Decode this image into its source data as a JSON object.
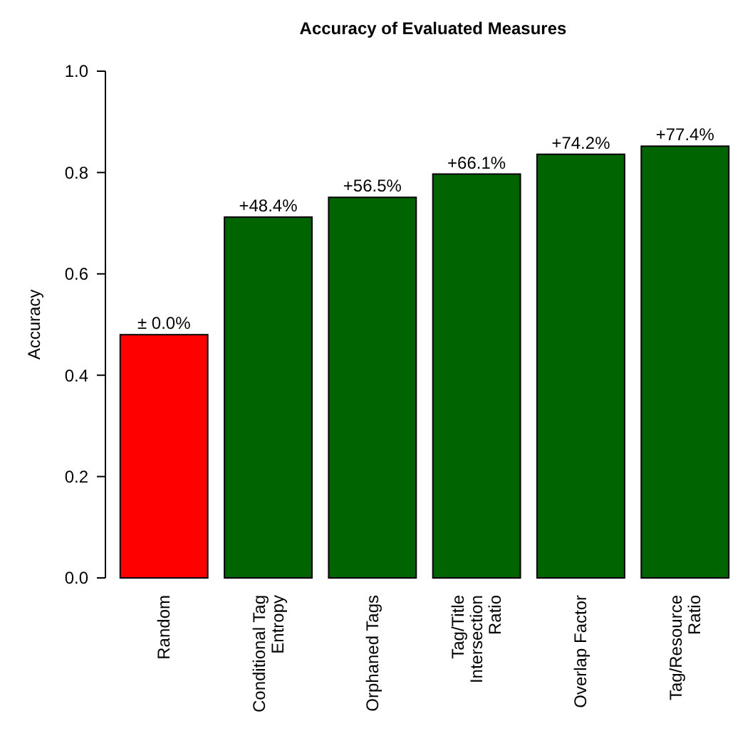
{
  "chart_data": {
    "type": "bar",
    "title": "Accuracy of Evaluated Measures",
    "ylabel": "Accuracy",
    "categories": [
      "Random",
      "Conditional Tag\nEntropy",
      "Orphaned Tags",
      "Tag/Title\nIntersection\nRatio",
      "Overlap Factor",
      "Tag/Resource\nRatio"
    ],
    "values": [
      0.48,
      0.712,
      0.751,
      0.797,
      0.836,
      0.852
    ],
    "colors": [
      "#ff0000",
      "#006400",
      "#006400",
      "#006400",
      "#006400",
      "#006400"
    ],
    "annotations": [
      {
        "text": "± 0.0%",
        "x": "Random",
        "y": 0.48
      },
      {
        "text": "+48.4%",
        "x": "Conditional Tag\nEntropy",
        "y": 0.712
      },
      {
        "text": "+56.5%",
        "x": "Orphaned Tags",
        "y": 0.751
      },
      {
        "text": "+66.1%",
        "x": "Tag/Title\nIntersection\nRatio",
        "y": 0.797
      },
      {
        "text": "+74.2%",
        "x": "Overlap Factor",
        "y": 0.836
      },
      {
        "text": "+77.4%",
        "x": "Tag/Resource\nRatio",
        "y": 0.852
      }
    ],
    "ylim": [
      0,
      1
    ],
    "yticks": [
      {
        "value": 0,
        "label": "0.0"
      },
      {
        "value": 0.2,
        "label": "0.2"
      },
      {
        "value": 0.4,
        "label": "0.4"
      },
      {
        "value": 0.6,
        "label": "0.6"
      },
      {
        "value": 0.8,
        "label": "0.8"
      },
      {
        "value": 1,
        "label": "1.0"
      }
    ]
  }
}
